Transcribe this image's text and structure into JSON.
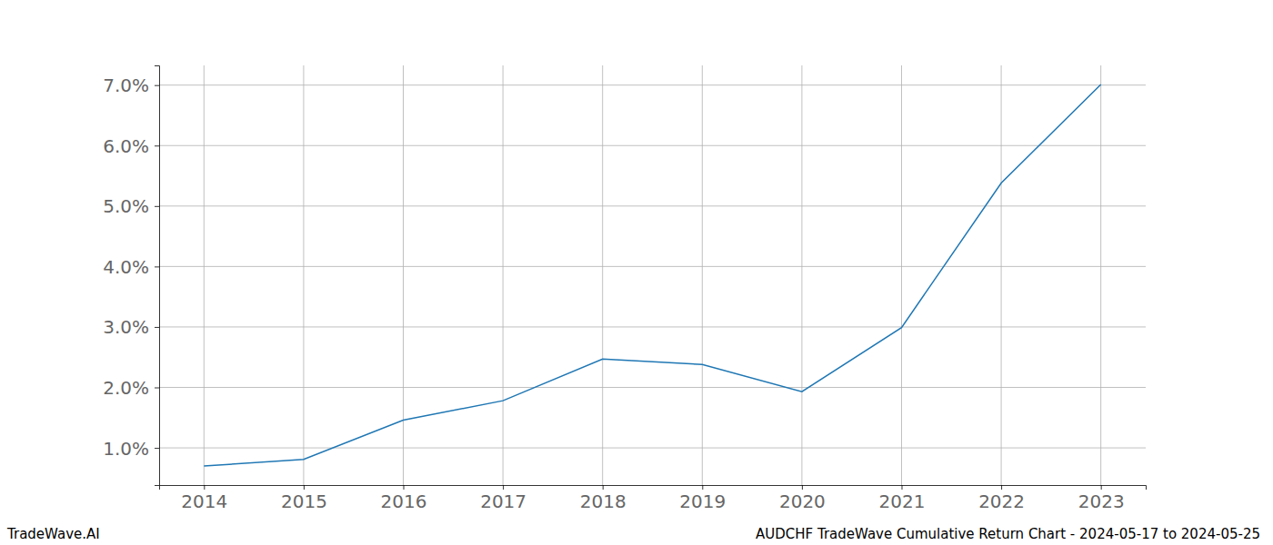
{
  "chart_data": {
    "type": "line",
    "title": "AUDCHF TradeWave Cumulative Return Chart - 2024-05-17 to 2024-05-25",
    "annotations": [
      "TradeWave.AI"
    ],
    "x": [
      2014,
      2015,
      2016,
      2017,
      2018,
      2019,
      2020,
      2021,
      2022,
      2023
    ],
    "values": [
      0.7,
      0.81,
      1.46,
      1.78,
      2.47,
      2.38,
      1.93,
      2.99,
      5.38,
      7.01
    ],
    "color": "#1f77b4",
    "xlim": [
      2013.55,
      2023.45
    ],
    "xticks": [
      2014,
      2015,
      2016,
      2017,
      2018,
      2019,
      2020,
      2021,
      2022,
      2023
    ],
    "ylim": [
      0.385,
      7.326
    ],
    "yticks": [
      {
        "value": 1,
        "label": "1.0%"
      },
      {
        "value": 2,
        "label": "2.0%"
      },
      {
        "value": 3,
        "label": "3.0%"
      },
      {
        "value": 4,
        "label": "4.0%"
      },
      {
        "value": 5,
        "label": "5.0%"
      },
      {
        "value": 6,
        "label": "6.0%"
      },
      {
        "value": 7,
        "label": "7.0%"
      }
    ],
    "grid": true
  }
}
